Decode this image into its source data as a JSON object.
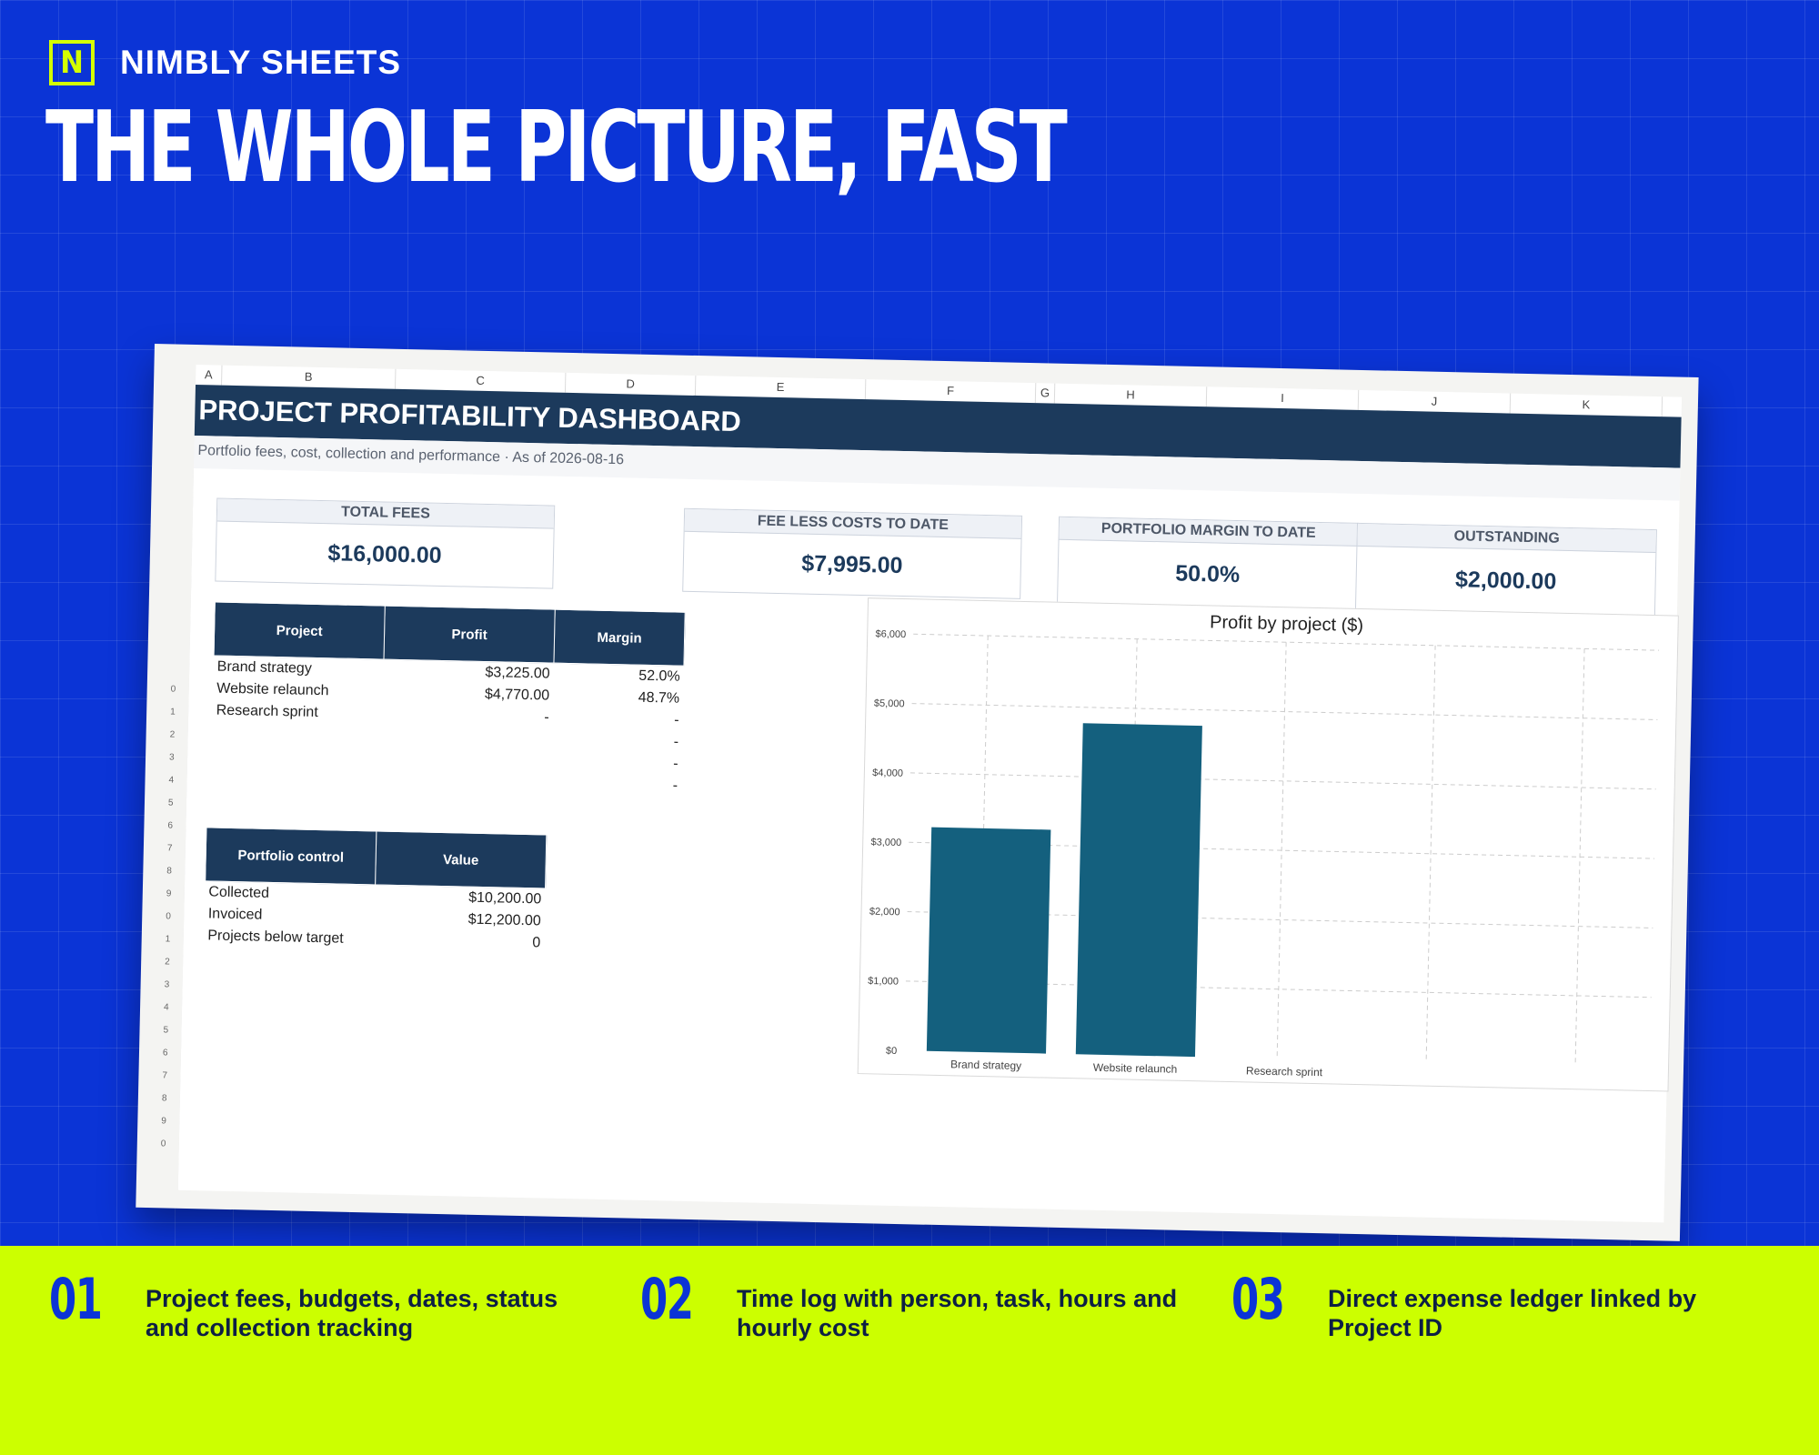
{
  "brand": {
    "logo_letter": "N",
    "name": "NIMBLY SHEETS"
  },
  "headline": "THE WHOLE PICTURE, FAST",
  "spreadsheet": {
    "columns": [
      "A",
      "B",
      "C",
      "D",
      "E",
      "F",
      "G",
      "H",
      "I",
      "J",
      "K"
    ],
    "row_numbers": [
      "0",
      "1",
      "2",
      "3",
      "4",
      "5",
      "6",
      "7",
      "8",
      "9",
      "0",
      "1",
      "2",
      "3",
      "4",
      "5",
      "6",
      "7",
      "8",
      "9",
      "0"
    ],
    "title": "PROJECT PROFITABILITY DASHBOARD",
    "subtitle": "Portfolio fees, cost, collection and performance · As of 2026-08-16",
    "kpis": [
      {
        "label": "TOTAL FEES",
        "value": "$16,000.00"
      },
      {
        "label": "FEE LESS COSTS TO DATE",
        "value": "$7,995.00"
      },
      {
        "label": "PORTFOLIO MARGIN TO DATE",
        "value": "50.0%"
      },
      {
        "label": "OUTSTANDING",
        "value": "$2,000.00"
      }
    ],
    "project_table": {
      "headers": [
        "Project",
        "Profit",
        "Margin"
      ],
      "rows": [
        [
          "Brand strategy",
          "$3,225.00",
          "52.0%"
        ],
        [
          "Website relaunch",
          "$4,770.00",
          "48.7%"
        ],
        [
          "Research sprint",
          "-",
          "-"
        ],
        [
          "",
          "",
          "-"
        ],
        [
          "",
          "",
          "-"
        ],
        [
          "",
          "",
          "-"
        ]
      ]
    },
    "control_table": {
      "headers": [
        "Portfolio control",
        "Value"
      ],
      "rows": [
        [
          "Collected",
          "$10,200.00"
        ],
        [
          "Invoiced",
          "$12,200.00"
        ],
        [
          "Projects below target",
          "0"
        ]
      ]
    }
  },
  "chart_data": {
    "type": "bar",
    "title": "Profit by project ($)",
    "categories": [
      "Brand strategy",
      "Website relaunch",
      "Research sprint"
    ],
    "values": [
      3225,
      4770,
      0
    ],
    "ylim": [
      0,
      6000
    ],
    "yticks": [
      "$0",
      "$1,000",
      "$2,000",
      "$3,000",
      "$4,000",
      "$5,000",
      "$6,000"
    ],
    "xlabel": "",
    "ylabel": "",
    "grid": true,
    "bar_color": "#14607e"
  },
  "features": [
    {
      "num": "01",
      "text": "Project fees, budgets, dates, status and collection tracking"
    },
    {
      "num": "02",
      "text": "Time log with person, task, hours and hourly cost"
    },
    {
      "num": "03",
      "text": "Direct expense ledger linked by Project ID"
    }
  ]
}
